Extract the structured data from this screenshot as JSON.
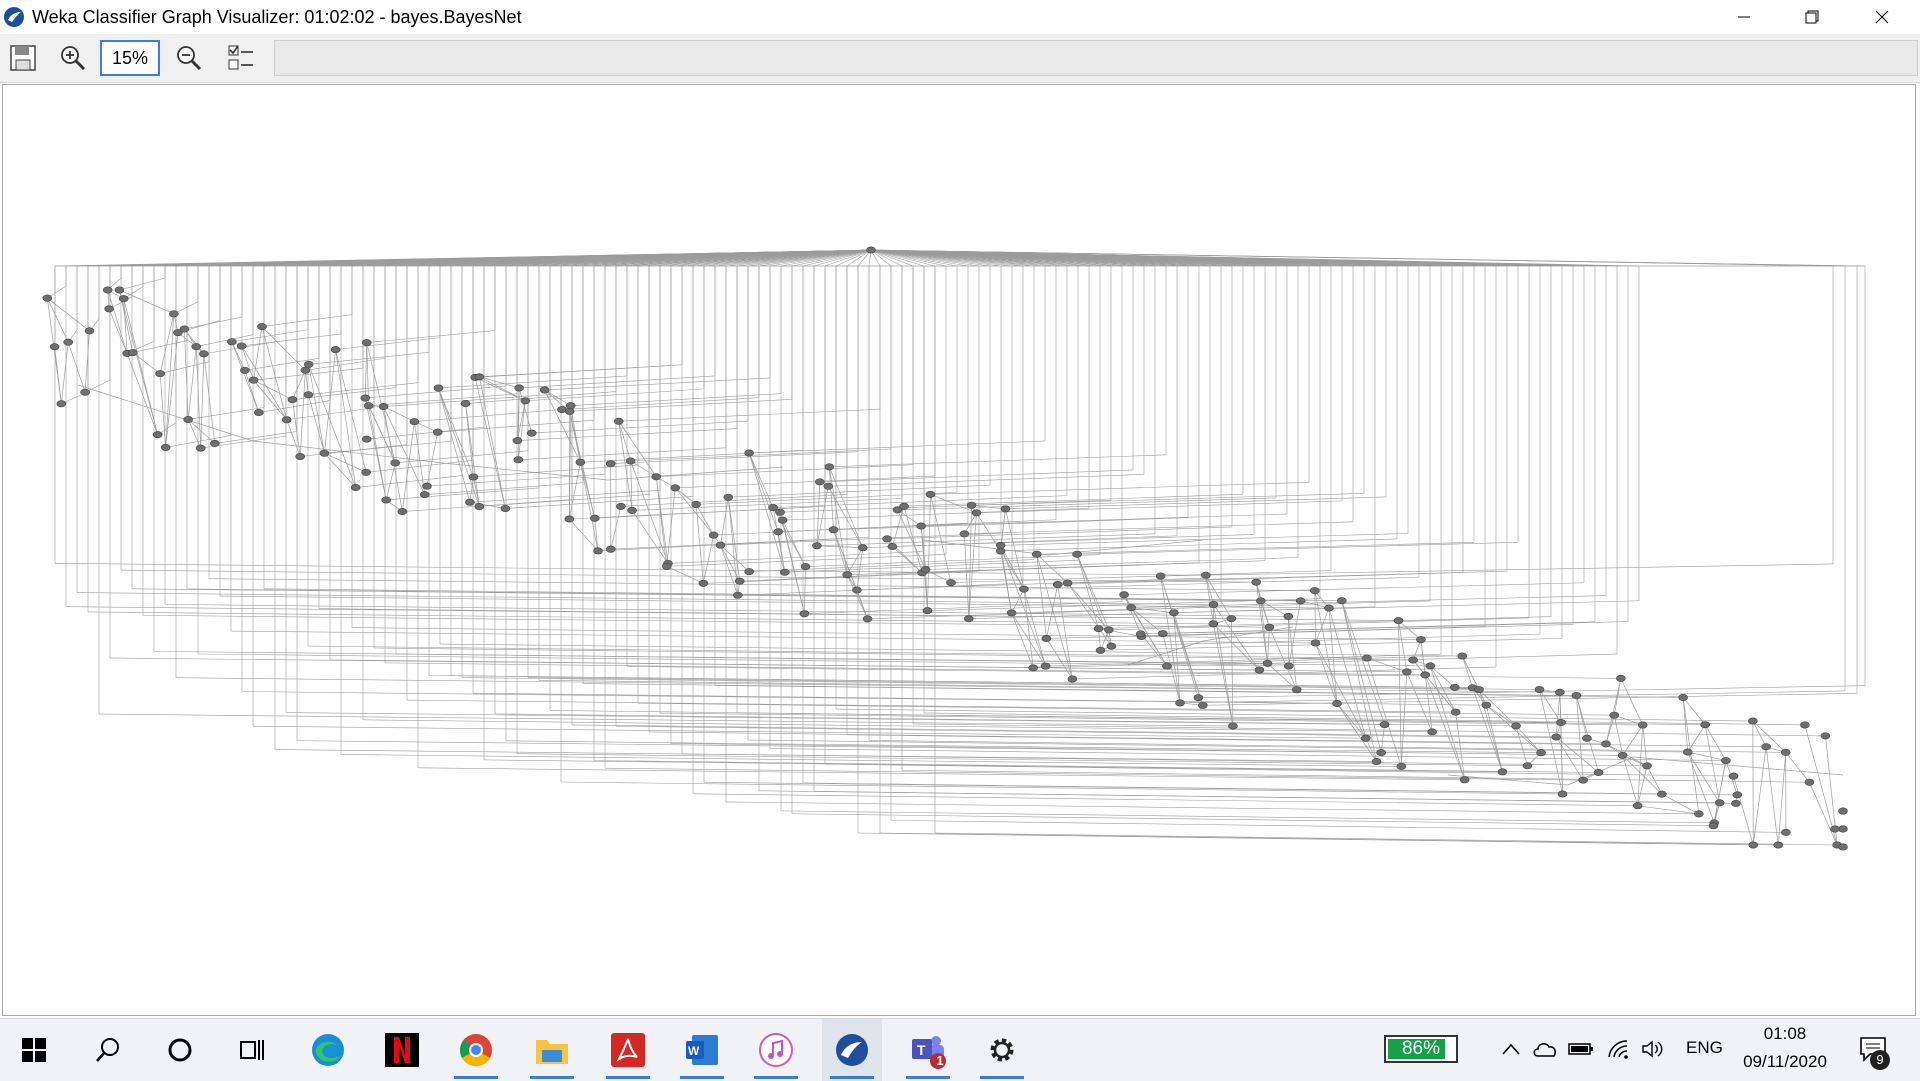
{
  "window": {
    "title": "Weka Classifier Graph Visualizer: 01:02:02 - bayes.BayesNet",
    "controls": [
      "minimize-icon",
      "restore-icon",
      "close-icon"
    ]
  },
  "toolbar": {
    "save_icon": "save-icon",
    "zoom_in_icon": "zoom-in-icon",
    "zoom_value": "15%",
    "zoom_out_icon": "zoom-out-icon",
    "layout_icon": "layout-options-icon"
  },
  "graph": {
    "edge_color": "#9c9c9c",
    "node_color": "#6e6e6e"
  },
  "taskbar": {
    "apps": [
      "windows-start-icon",
      "search-icon",
      "cortana-icon",
      "task-view-icon",
      "edge-icon",
      "netflix-icon",
      "chrome-icon",
      "file-explorer-icon",
      "acrobat-icon",
      "word-icon",
      "itunes-icon",
      "weka-icon",
      "teams-icon",
      "settings-icon"
    ],
    "teams_badge": "1",
    "battery_percent": "86%",
    "language": "ENG",
    "time": "01:08",
    "date": "09/11/2020",
    "notification_count": "9"
  }
}
